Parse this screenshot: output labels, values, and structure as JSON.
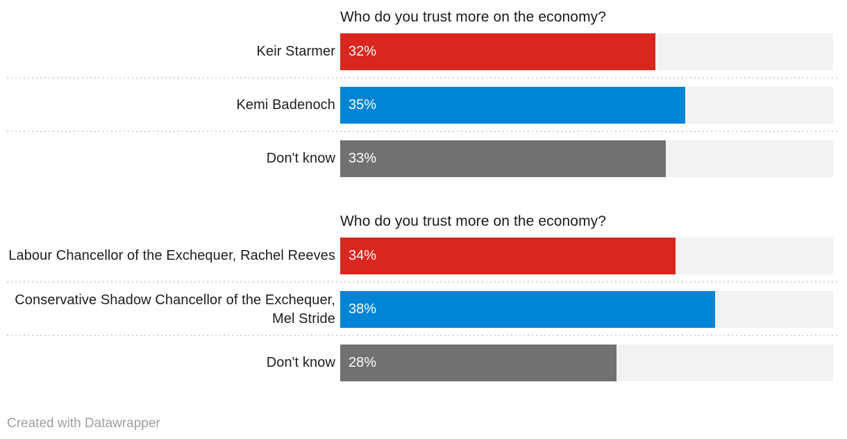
{
  "chart_data": {
    "type": "bar",
    "orientation": "horizontal",
    "axis_max": 50,
    "unit": "%",
    "grid": false,
    "legend": null,
    "groups": [
      {
        "title": "Who do you trust more on the economy?",
        "rows": [
          {
            "label": "Keir Starmer",
            "value": 32,
            "display": "32%",
            "color": "#d9261f"
          },
          {
            "label": "Kemi Badenoch",
            "value": 35,
            "display": "35%",
            "color": "#0084d5"
          },
          {
            "label": "Don't know",
            "value": 33,
            "display": "33%",
            "color": "#717171"
          }
        ]
      },
      {
        "title": "Who do you trust more on the economy?",
        "rows": [
          {
            "label": "Labour Chancellor of the Exchequer, Rachel Reeves",
            "value": 34,
            "display": "34%",
            "color": "#d9261f"
          },
          {
            "label": "Conservative Shadow Chancellor of the Exchequer, Mel Stride",
            "value": 38,
            "display": "38%",
            "color": "#0084d5"
          },
          {
            "label": "Don't know",
            "value": 28,
            "display": "28%",
            "color": "#717171"
          }
        ]
      }
    ]
  },
  "colors": {
    "red": "#d9261f",
    "blue": "#0084d5",
    "gray": "#717171",
    "track": "#f2f2f2",
    "separator": "#d4d4d4",
    "title_text": "#1a1a1a",
    "label_text": "#1d1d1d",
    "value_text": "#ffffff",
    "footer_text": "#9e9e9e"
  },
  "footer": {
    "credit": "Created with Datawrapper"
  }
}
